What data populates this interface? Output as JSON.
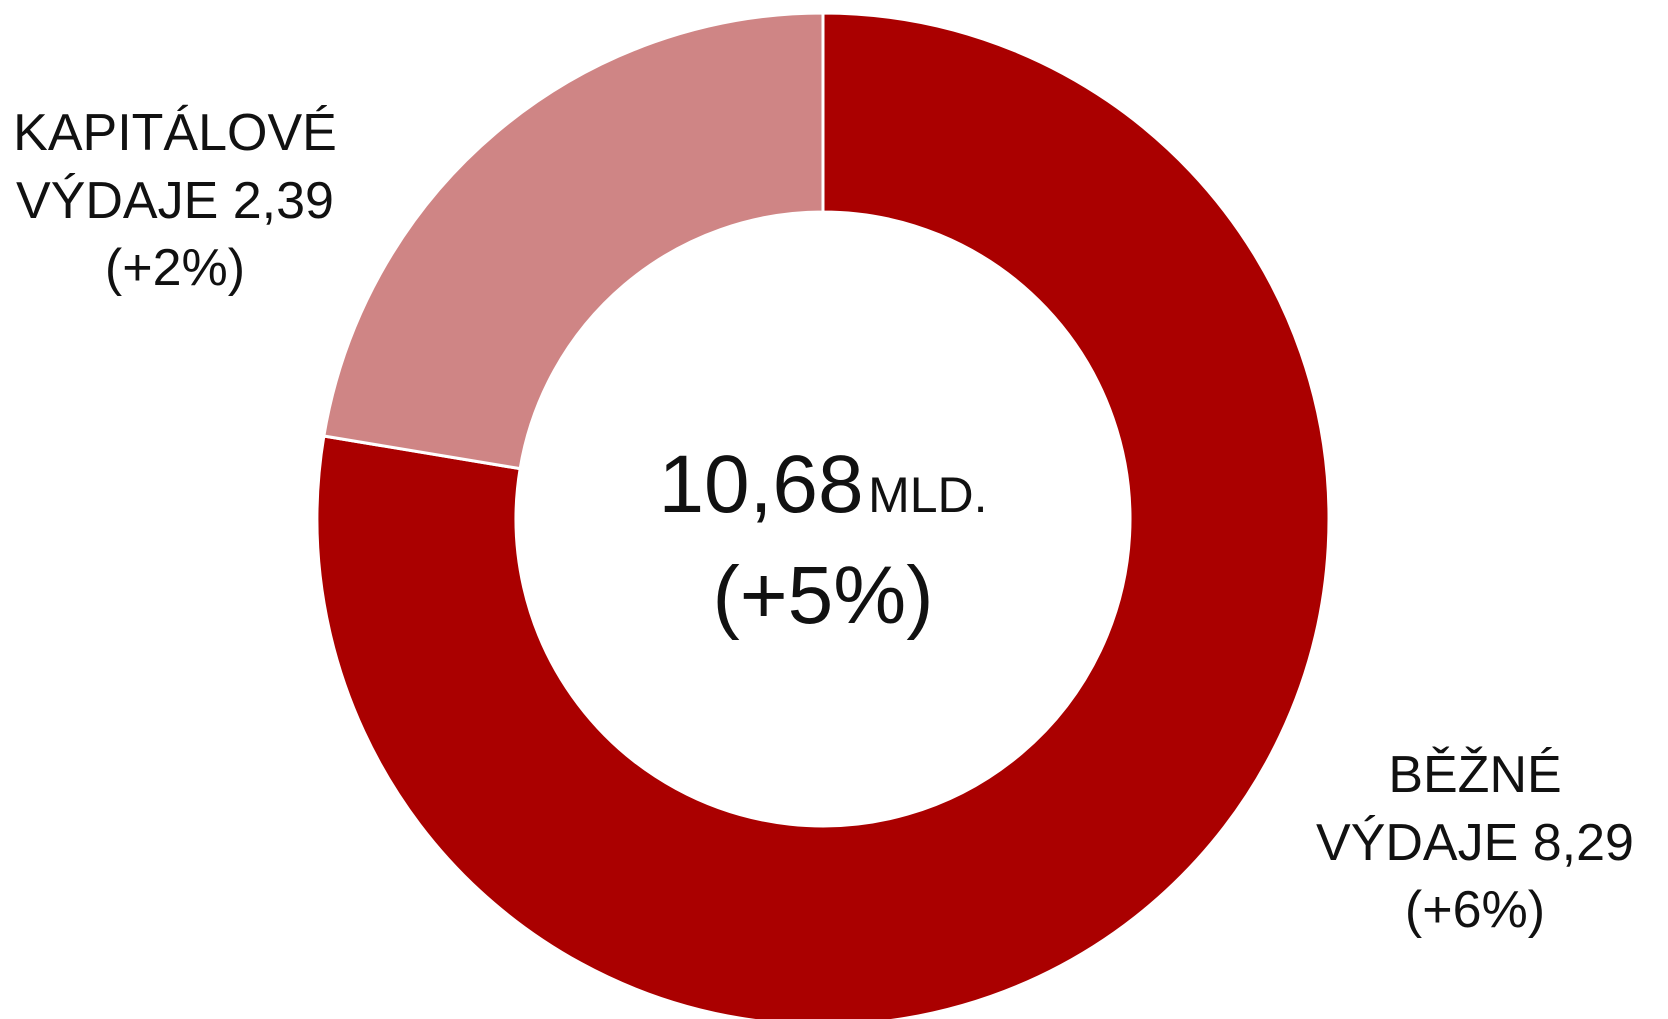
{
  "chart_data": {
    "type": "donut",
    "categories": [
      "BĚŽNÉ VÝDAJE",
      "KAPITÁLOVÉ VÝDAJE"
    ],
    "values": [
      8.29,
      2.39
    ],
    "value_labels": [
      "8,29",
      "2,39"
    ],
    "changes": [
      6,
      2
    ],
    "change_labels": [
      "(+6%)",
      "(+2%)"
    ],
    "colors": [
      "#aa0000",
      "#cf8585"
    ],
    "total": {
      "value": 10.68,
      "label": "10,68"
    },
    "total_unit": "MLD.",
    "total_change": {
      "value": 5,
      "label": "(+5%)"
    }
  }
}
